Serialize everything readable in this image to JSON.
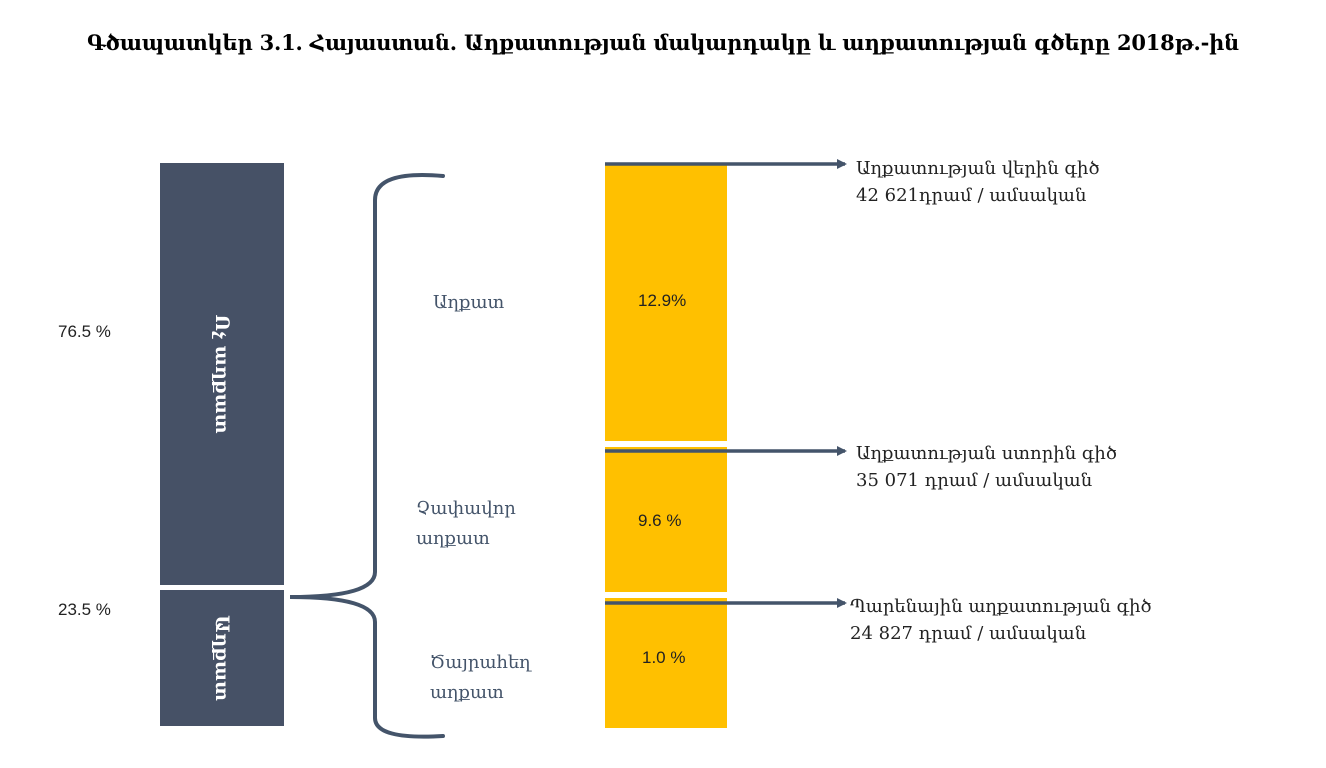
{
  "title": "Գծապատկեր 3.1. Հայաստան. Աղքատության մակարդակը և աղքատության գծերը 2018թ.-ին",
  "left_column": {
    "non_poor": {
      "label": "Ոչ աղքատ",
      "percent_label": "76.5 %",
      "share": 76.5
    },
    "poor": {
      "label": "Աղքատ",
      "percent_label": "23.5 %",
      "share": 23.5
    }
  },
  "categories": [
    {
      "label_lines": [
        "Աղքատ"
      ],
      "value_label": "12.9%",
      "value": 12.9
    },
    {
      "label_lines": [
        "Չափավոր",
        "աղքատ"
      ],
      "value_label": "9.6 %",
      "value": 9.6
    },
    {
      "label_lines": [
        "Ծայրահեղ",
        "աղքատ"
      ],
      "value_label": "1.0 %",
      "value": 1.0
    }
  ],
  "poverty_lines": [
    {
      "name": "Աղքատության վերին գիծ",
      "amount": "42 621դրամ / ամսական"
    },
    {
      "name": "Աղքատության ստորին գիծ",
      "amount": "35 071 դրամ / ամսական"
    },
    {
      "name": "Պարենային աղքատության գիծ",
      "amount": "24 827 դրամ / ամսական"
    }
  ],
  "colors": {
    "dark_bar": "#465166",
    "gold_bar": "#ffc000",
    "connector": "#44546a",
    "category_text": "#44546a"
  }
}
